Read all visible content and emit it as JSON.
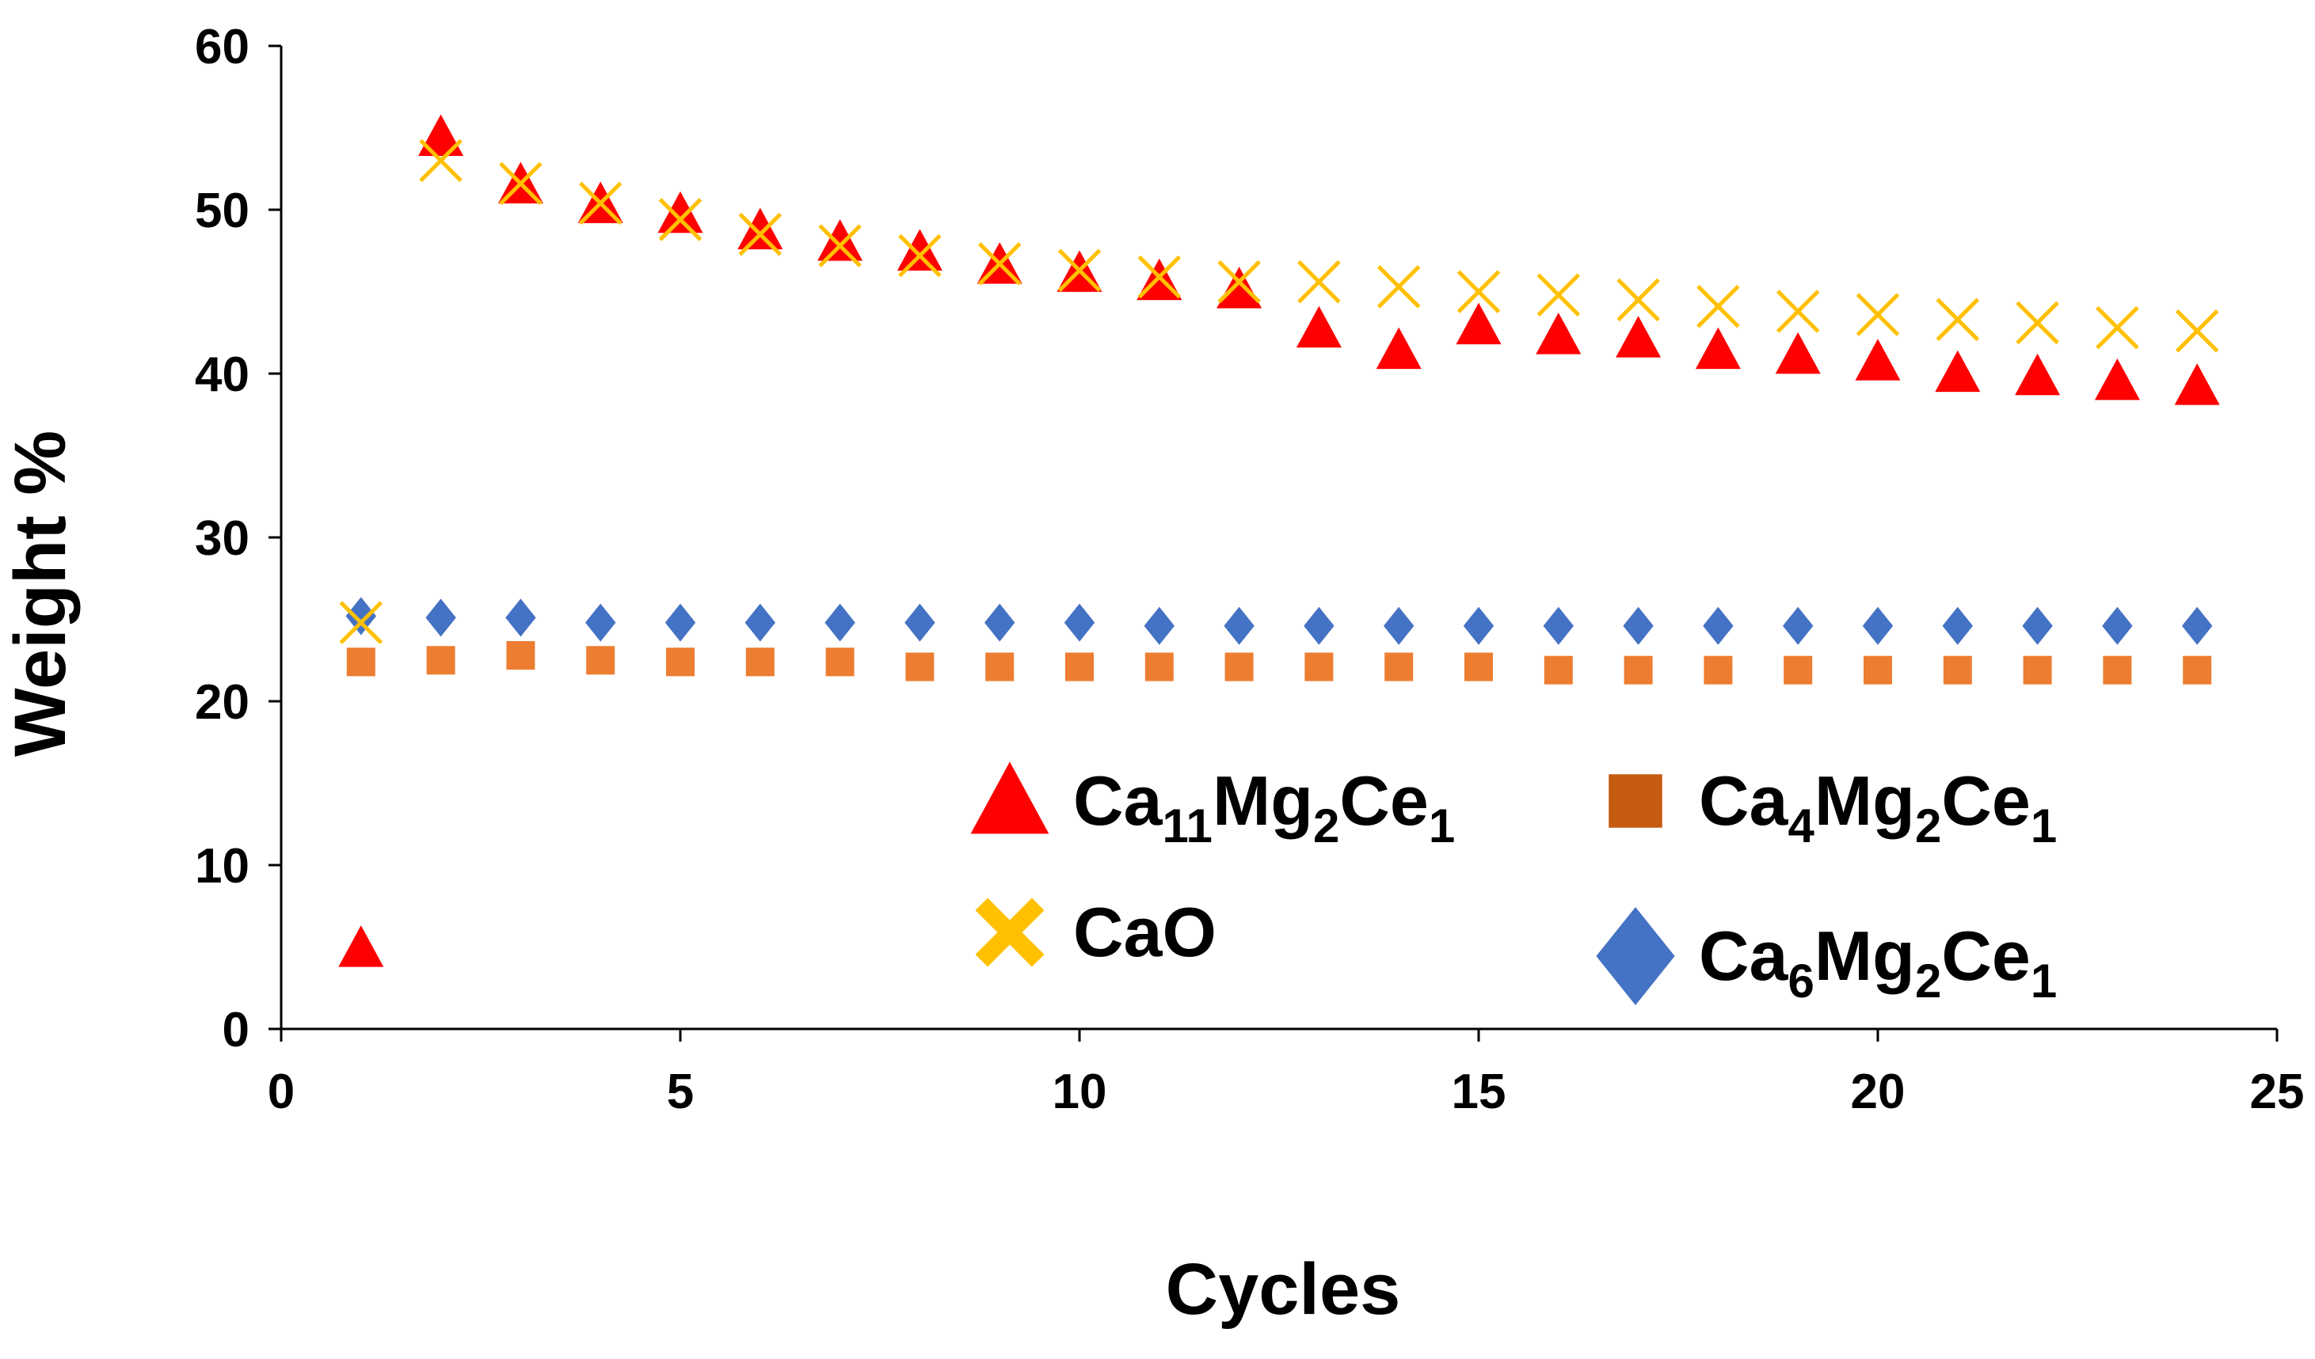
{
  "chart_data": {
    "type": "scatter",
    "title": "",
    "xlabel": "Cycles",
    "ylabel": "Weight %",
    "xlim": [
      0,
      25
    ],
    "ylim": [
      0,
      60
    ],
    "xticks": [
      0,
      5,
      10,
      15,
      20,
      25
    ],
    "yticks": [
      0,
      10,
      20,
      30,
      40,
      50,
      60
    ],
    "grid": false,
    "legend_position": "lower-right inside plot",
    "series": [
      {
        "name": "Ca11Mg2Ce1",
        "legend": {
          "parts": [
            "Ca",
            "11",
            "Mg",
            "2",
            "Ce",
            "1"
          ]
        },
        "marker": "triangle",
        "color": "#ff0000",
        "x": [
          1,
          2,
          3,
          4,
          5,
          6,
          7,
          8,
          9,
          10,
          11,
          12,
          13,
          14,
          15,
          16,
          17,
          18,
          19,
          20,
          21,
          22,
          23,
          24
        ],
        "y": [
          4.8,
          54.3,
          51.4,
          50.2,
          49.6,
          48.6,
          47.9,
          47.3,
          46.5,
          46.0,
          45.5,
          45.0,
          42.6,
          41.3,
          42.8,
          42.2,
          42.0,
          41.3,
          41.0,
          40.6,
          39.9,
          39.7,
          39.4,
          39.1
        ]
      },
      {
        "name": "CaO",
        "legend": {
          "parts": [
            "CaO"
          ]
        },
        "marker": "x",
        "color": "#ffc000",
        "x": [
          1,
          2,
          3,
          4,
          5,
          6,
          7,
          8,
          9,
          10,
          11,
          12,
          13,
          14,
          15,
          16,
          17,
          18,
          19,
          20,
          21,
          22,
          23,
          24
        ],
        "y": [
          24.8,
          53.0,
          51.6,
          50.4,
          49.4,
          48.5,
          47.8,
          47.2,
          46.7,
          46.3,
          45.9,
          45.6,
          45.6,
          45.3,
          45.0,
          44.8,
          44.5,
          44.1,
          43.8,
          43.6,
          43.3,
          43.1,
          42.8,
          42.6
        ]
      },
      {
        "name": "Ca4Mg2Ce1",
        "legend": {
          "parts": [
            "Ca",
            "4",
            "Mg",
            "2",
            "Ce",
            "1"
          ]
        },
        "marker": "square",
        "color": "#ed7d31",
        "legend_color": "#c55a11",
        "x": [
          1,
          2,
          3,
          4,
          5,
          6,
          7,
          8,
          9,
          10,
          11,
          12,
          13,
          14,
          15,
          16,
          17,
          18,
          19,
          20,
          21,
          22,
          23,
          24
        ],
        "y": [
          22.4,
          22.5,
          22.8,
          22.5,
          22.4,
          22.4,
          22.4,
          22.1,
          22.1,
          22.1,
          22.1,
          22.1,
          22.1,
          22.1,
          22.1,
          21.9,
          21.9,
          21.9,
          21.9,
          21.9,
          21.9,
          21.9,
          21.9,
          21.9
        ]
      },
      {
        "name": "Ca6Mg2Ce1",
        "legend": {
          "parts": [
            "Ca",
            "6",
            "Mg",
            "2",
            "Ce",
            "1"
          ]
        },
        "marker": "diamond",
        "color": "#4472c4",
        "x": [
          1,
          2,
          3,
          4,
          5,
          6,
          7,
          8,
          9,
          10,
          11,
          12,
          13,
          14,
          15,
          16,
          17,
          18,
          19,
          20,
          21,
          22,
          23,
          24
        ],
        "y": [
          25.2,
          25.1,
          25.1,
          24.8,
          24.8,
          24.8,
          24.8,
          24.8,
          24.8,
          24.8,
          24.6,
          24.6,
          24.6,
          24.6,
          24.6,
          24.6,
          24.6,
          24.6,
          24.6,
          24.6,
          24.6,
          24.6,
          24.6,
          24.6
        ]
      }
    ]
  }
}
